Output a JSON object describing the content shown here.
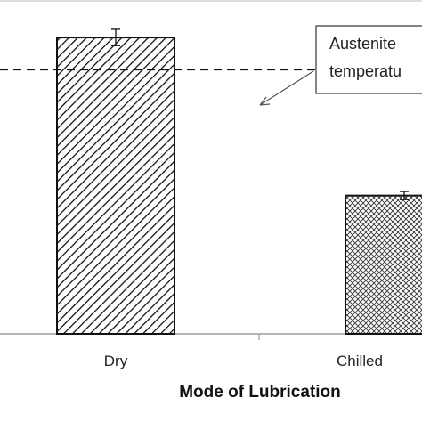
{
  "chart_data": {
    "type": "bar",
    "categories": [
      "Dry",
      "Chilled"
    ],
    "values": [
      1055,
      823
    ],
    "error": [
      12,
      6
    ],
    "ylim": [
      620,
      1110
    ],
    "xlabel": "Mode of Lubrication",
    "ylabel": "",
    "title": "",
    "reference_line": {
      "value": 1008,
      "style": "dashed"
    },
    "annotation": {
      "lines": [
        "Austenite",
        "temperatu"
      ]
    },
    "patterns": [
      "diagonal-hatch",
      "crosshatch"
    ],
    "grid": false
  }
}
